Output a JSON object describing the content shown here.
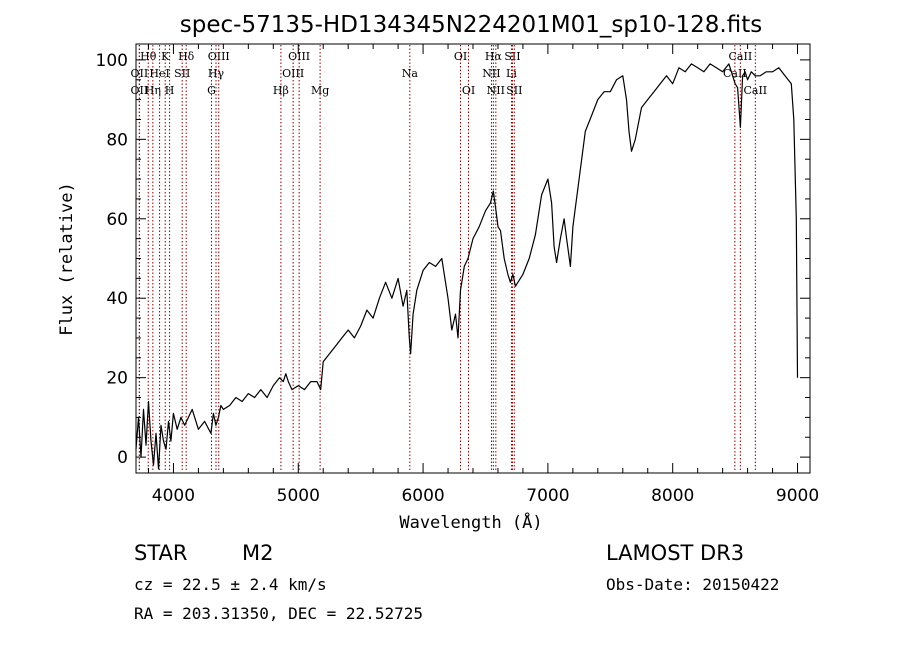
{
  "chart_data": {
    "type": "line",
    "title": "spec-57135-HD134345N224201M01_sp10-128.fits",
    "xlabel": "Wavelength (Å)",
    "ylabel": "Flux (relative)",
    "xlim": [
      3700,
      9100
    ],
    "ylim": [
      -4,
      104
    ],
    "xticks": [
      4000,
      5000,
      6000,
      7000,
      8000,
      9000
    ],
    "yticks": [
      0,
      20,
      40,
      60,
      80,
      100
    ],
    "series": [
      {
        "name": "flux",
        "color": "#000000",
        "x": [
          3700,
          3720,
          3740,
          3760,
          3780,
          3800,
          3820,
          3840,
          3860,
          3880,
          3900,
          3920,
          3940,
          3960,
          3980,
          4000,
          4030,
          4060,
          4090,
          4120,
          4150,
          4200,
          4250,
          4300,
          4320,
          4340,
          4360,
          4380,
          4400,
          4450,
          4500,
          4550,
          4600,
          4650,
          4700,
          4750,
          4800,
          4850,
          4880,
          4900,
          4920,
          4950,
          5000,
          5050,
          5100,
          5150,
          5180,
          5200,
          5250,
          5300,
          5350,
          5400,
          5450,
          5500,
          5550,
          5600,
          5650,
          5700,
          5750,
          5800,
          5840,
          5870,
          5890,
          5900,
          5920,
          5950,
          6000,
          6050,
          6100,
          6150,
          6200,
          6230,
          6260,
          6280,
          6300,
          6330,
          6360,
          6400,
          6450,
          6500,
          6540,
          6563,
          6580,
          6600,
          6620,
          6650,
          6680,
          6700,
          6720,
          6740,
          6760,
          6800,
          6850,
          6900,
          6950,
          7000,
          7030,
          7050,
          7070,
          7100,
          7130,
          7150,
          7180,
          7200,
          7250,
          7300,
          7350,
          7400,
          7450,
          7500,
          7550,
          7600,
          7630,
          7650,
          7670,
          7700,
          7750,
          7800,
          7850,
          7900,
          7950,
          8000,
          8050,
          8100,
          8150,
          8200,
          8250,
          8300,
          8350,
          8400,
          8450,
          8500,
          8520,
          8542,
          8560,
          8580,
          8600,
          8630,
          8662,
          8700,
          8750,
          8800,
          8850,
          8900,
          8950,
          8970,
          8990,
          9000
        ],
        "values": [
          2,
          10,
          0,
          12,
          3,
          14,
          4,
          -2,
          6,
          -3,
          8,
          4,
          2,
          9,
          4,
          11,
          7,
          10,
          8,
          10,
          12,
          7,
          9,
          6,
          11,
          8,
          10,
          13,
          12,
          13,
          15,
          14,
          16,
          15,
          17,
          15,
          18,
          20,
          19,
          21,
          19,
          17,
          18,
          17,
          19,
          19,
          17,
          24,
          26,
          28,
          30,
          32,
          30,
          33,
          37,
          35,
          40,
          44,
          40,
          45,
          38,
          42,
          30,
          26,
          36,
          42,
          47,
          49,
          48,
          50,
          40,
          32,
          36,
          30,
          42,
          48,
          50,
          55,
          58,
          62,
          64,
          67,
          63,
          58,
          57,
          50,
          46,
          44,
          46,
          43,
          44,
          46,
          50,
          56,
          66,
          70,
          64,
          53,
          49,
          55,
          60,
          55,
          48,
          58,
          70,
          82,
          86,
          90,
          92,
          92,
          95,
          96,
          90,
          82,
          77,
          80,
          88,
          90,
          92,
          94,
          96,
          94,
          98,
          97,
          99,
          98,
          97,
          99,
          98,
          97,
          99,
          94,
          93,
          83,
          96,
          97,
          95,
          97,
          96,
          96,
          97,
          97,
          98,
          96,
          94,
          85,
          60,
          20
        ]
      }
    ],
    "lines": [
      {
        "label": "Hθ",
        "x": 3798,
        "row": 0
      },
      {
        "label": "OII",
        "x": 3727,
        "row": 1
      },
      {
        "label": "OII",
        "x": 3727,
        "row": 2
      },
      {
        "label": "Hη",
        "x": 3835,
        "row": 2
      },
      {
        "label": "HeI",
        "x": 3889,
        "row": 1
      },
      {
        "label": "K",
        "x": 3934,
        "row": 0
      },
      {
        "label": "H",
        "x": 3969,
        "row": 2
      },
      {
        "label": "SII",
        "x": 4070,
        "row": 1
      },
      {
        "label": "Hδ",
        "x": 4102,
        "row": 0
      },
      {
        "label": "G",
        "x": 4305,
        "row": 2
      },
      {
        "label": "Hγ",
        "x": 4341,
        "row": 1
      },
      {
        "label": "OIII",
        "x": 4363,
        "row": 0
      },
      {
        "label": "Hβ",
        "x": 4861,
        "row": 2
      },
      {
        "label": "OIII",
        "x": 4959,
        "row": 1
      },
      {
        "label": "OIII",
        "x": 5007,
        "row": 0
      },
      {
        "label": "Mg",
        "x": 5175,
        "row": 2
      },
      {
        "label": "Na",
        "x": 5894,
        "row": 1
      },
      {
        "label": "OI",
        "x": 6300,
        "row": 0
      },
      {
        "label": "OI",
        "x": 6364,
        "row": 2
      },
      {
        "label": "NII",
        "x": 6548,
        "row": 1
      },
      {
        "label": "Hα",
        "x": 6563,
        "row": 0
      },
      {
        "label": "NII",
        "x": 6583,
        "row": 2
      },
      {
        "label": "Li",
        "x": 6708,
        "row": 1
      },
      {
        "label": "SII",
        "x": 6716,
        "row": 0
      },
      {
        "label": "SII",
        "x": 6731,
        "row": 2
      },
      {
        "label": "CaII",
        "x": 8498,
        "row": 1
      },
      {
        "label": "CaII",
        "x": 8542,
        "row": 0
      },
      {
        "label": "CaII",
        "x": 8662,
        "row": 2
      }
    ]
  },
  "info": {
    "object_class": "STAR",
    "subclass": "M2",
    "cz": "cz = 22.5 ± 2.4 km/s",
    "radec": "RA = 203.31350, DEC =  22.52725",
    "survey": "LAMOST DR3",
    "obs_date": "Obs-Date: 20150422"
  },
  "colors": {
    "axis": "#000000",
    "line_marker": "#8b0000",
    "spectrum": "#000000"
  }
}
